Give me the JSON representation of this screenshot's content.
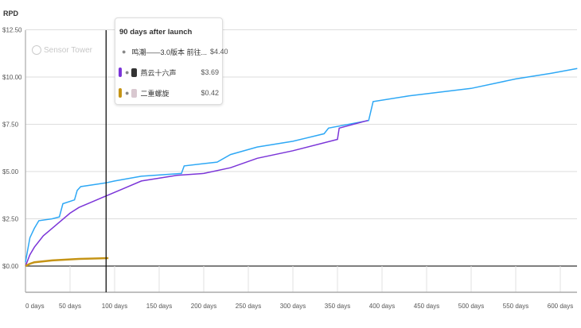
{
  "chart_data": {
    "type": "line",
    "title": "",
    "ylabel": "RPD",
    "xlabel": "",
    "xlim": [
      0,
      619
    ],
    "ylim": [
      0,
      12.5
    ],
    "x_ticks": [
      "0 days",
      "50 days",
      "100 days",
      "150 days",
      "200 days",
      "250 days",
      "300 days",
      "350 days",
      "400 days",
      "450 days",
      "500 days",
      "550 days",
      "600 days"
    ],
    "x_tick_values": [
      0,
      50,
      100,
      150,
      200,
      250,
      300,
      350,
      400,
      450,
      500,
      550,
      600
    ],
    "y_ticks": [
      "$0.00",
      "$2.50",
      "$5.00",
      "$7.50",
      "$10.00",
      "$12.50"
    ],
    "y_tick_values": [
      0,
      2.5,
      5,
      7.5,
      10,
      12.5
    ],
    "grid": true,
    "cursor_day": 90,
    "series": [
      {
        "name": "鸣潮——3.0版本 前往...",
        "color": "#2ea8f5",
        "x": [
          0,
          3,
          5,
          10,
          15,
          30,
          38,
          42,
          55,
          58,
          62,
          90,
          100,
          130,
          175,
          178,
          215,
          230,
          260,
          300,
          335,
          340,
          385,
          390,
          430,
          500,
          550,
          590,
          619
        ],
        "values": [
          0.2,
          1.0,
          1.5,
          2.0,
          2.4,
          2.5,
          2.6,
          3.3,
          3.5,
          4.0,
          4.2,
          4.4,
          4.5,
          4.75,
          4.9,
          5.3,
          5.5,
          5.9,
          6.3,
          6.6,
          7.0,
          7.3,
          7.7,
          8.7,
          9.0,
          9.4,
          9.9,
          10.2,
          10.45
        ]
      },
      {
        "name": "燕云十六声",
        "color": "#7b35d8",
        "x": [
          0,
          5,
          10,
          20,
          30,
          50,
          60,
          90,
          110,
          130,
          170,
          200,
          230,
          260,
          300,
          350,
          352,
          384
        ],
        "values": [
          0,
          0.6,
          1.0,
          1.6,
          2.0,
          2.8,
          3.1,
          3.7,
          4.1,
          4.5,
          4.8,
          4.9,
          5.2,
          5.7,
          6.1,
          6.7,
          7.3,
          7.7
        ]
      },
      {
        "name": "二重螺旋",
        "color": "#c59416",
        "x": [
          0,
          5,
          10,
          30,
          60,
          93
        ],
        "values": [
          0,
          0.12,
          0.2,
          0.3,
          0.38,
          0.42
        ]
      }
    ]
  },
  "tooltip": {
    "title": "90 days after launch",
    "rows": [
      {
        "name": "鸣潮——3.0版本 前往...",
        "value": "$4.40"
      },
      {
        "name": "燕云十六声",
        "value": "$3.69"
      },
      {
        "name": "二重螺旋",
        "value": "$0.42"
      }
    ]
  },
  "watermark": "Sensor Tower"
}
